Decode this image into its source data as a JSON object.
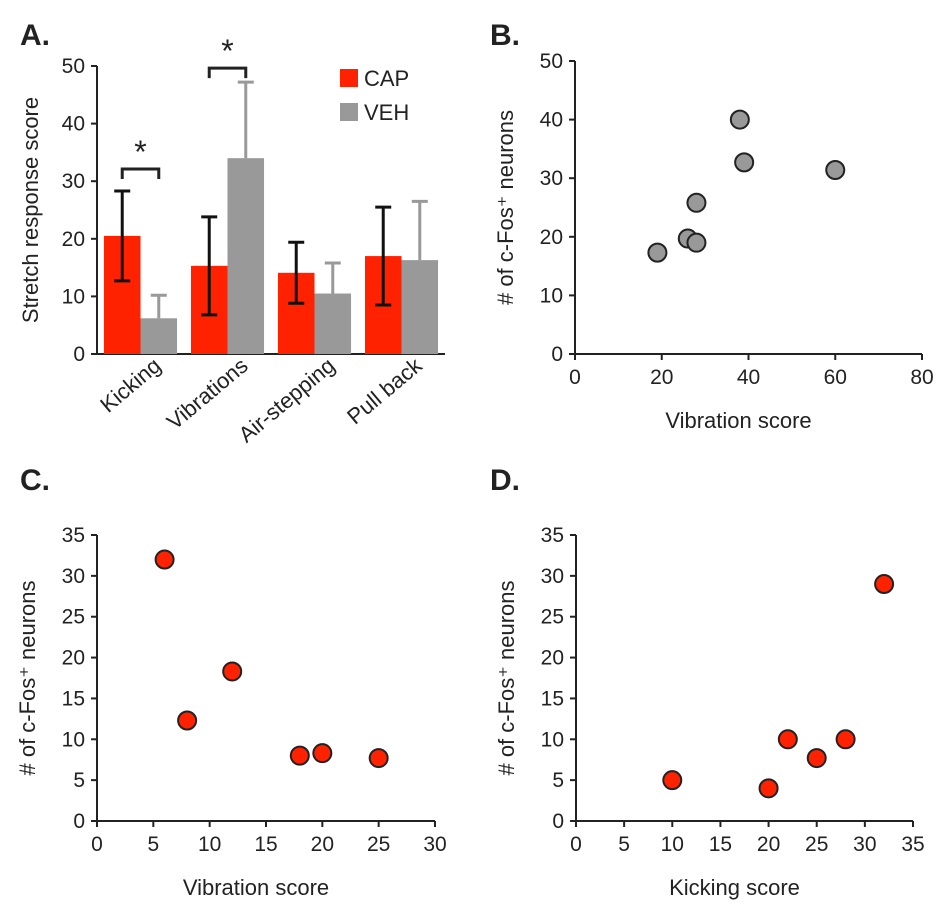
{
  "chart_data": [
    {
      "panel": "A.",
      "type": "bar",
      "title": "",
      "xlabel": "",
      "ylabel": "Stretch response score",
      "categories": [
        "Kicking",
        "Vibrations",
        "Air-stepping",
        "Pull back"
      ],
      "series": [
        {
          "name": "CAP",
          "color": "#ff2200",
          "values": [
            20.5,
            15.3,
            14.1,
            17.0
          ],
          "errors": [
            7.8,
            8.5,
            5.3,
            8.5
          ],
          "error_color": "#111111"
        },
        {
          "name": "VEH",
          "color": "#999999",
          "values": [
            6.2,
            34.0,
            10.5,
            16.3
          ],
          "errors": [
            4.0,
            13.2,
            5.3,
            10.2
          ],
          "error_color": "#999999"
        }
      ],
      "ylim": [
        0,
        50
      ],
      "yticks": [
        "0",
        "10",
        "20",
        "30",
        "40",
        "50"
      ],
      "legend_position": "top-right",
      "annotations": [
        {
          "text": "*",
          "category_index": 0
        },
        {
          "text": "*",
          "category_index": 1
        }
      ],
      "grid": false
    },
    {
      "panel": "B.",
      "type": "scatter",
      "title": "",
      "xlabel": "Vibration score",
      "ylabel": "# of c-Fos⁺ neurons",
      "xlim": [
        0,
        80
      ],
      "ylim": [
        0,
        50
      ],
      "xticks": [
        "0",
        "20",
        "40",
        "60",
        "80"
      ],
      "yticks": [
        "0",
        "10",
        "20",
        "30",
        "40",
        "50"
      ],
      "marker_color": "#999999",
      "points": [
        {
          "x": 19,
          "y": 17.3
        },
        {
          "x": 26,
          "y": 19.7
        },
        {
          "x": 28,
          "y": 19.0
        },
        {
          "x": 28,
          "y": 25.8
        },
        {
          "x": 38,
          "y": 40.0
        },
        {
          "x": 39,
          "y": 32.7
        },
        {
          "x": 60,
          "y": 31.4
        }
      ],
      "grid": false
    },
    {
      "panel": "C.",
      "type": "scatter",
      "title": "",
      "xlabel": "Vibration score",
      "ylabel": "# of c-Fos⁺ neurons",
      "xlim": [
        0,
        30
      ],
      "ylim": [
        0,
        35
      ],
      "xticks": [
        "0",
        "5",
        "10",
        "15",
        "20",
        "25",
        "30"
      ],
      "yticks": [
        "0",
        "5",
        "10",
        "15",
        "20",
        "25",
        "30",
        "35"
      ],
      "marker_color": "#ff2200",
      "points": [
        {
          "x": 6,
          "y": 32.0
        },
        {
          "x": 8,
          "y": 12.3
        },
        {
          "x": 12,
          "y": 18.3
        },
        {
          "x": 18,
          "y": 8.0
        },
        {
          "x": 20,
          "y": 8.3
        },
        {
          "x": 25,
          "y": 7.7
        }
      ],
      "grid": false
    },
    {
      "panel": "D.",
      "type": "scatter",
      "title": "",
      "xlabel": "Kicking score",
      "ylabel": "# of c-Fos⁺ neurons",
      "xlim": [
        0,
        35
      ],
      "ylim": [
        0,
        35
      ],
      "xticks": [
        "0",
        "5",
        "10",
        "15",
        "20",
        "25",
        "30",
        "35"
      ],
      "yticks": [
        "0",
        "5",
        "10",
        "15",
        "20",
        "25",
        "30",
        "35"
      ],
      "marker_color": "#ff2200",
      "points": [
        {
          "x": 10,
          "y": 5.0
        },
        {
          "x": 20,
          "y": 4.0
        },
        {
          "x": 22,
          "y": 10.0
        },
        {
          "x": 25,
          "y": 7.7
        },
        {
          "x": 28,
          "y": 10.0
        },
        {
          "x": 32,
          "y": 29.0
        }
      ],
      "grid": false
    }
  ]
}
